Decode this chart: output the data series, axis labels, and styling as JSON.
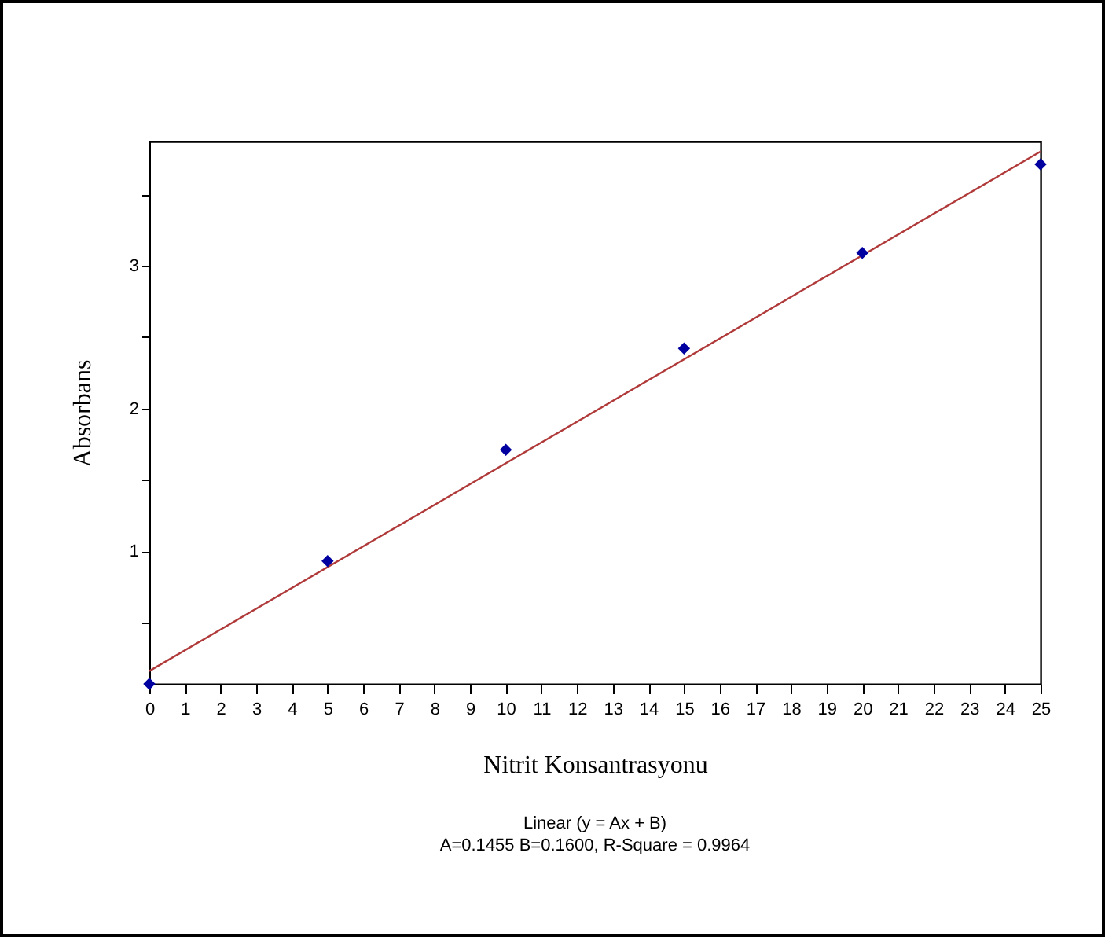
{
  "chart_data": {
    "type": "scatter",
    "xlabel": "Nitrit Konsantrasyonu",
    "ylabel": "Absorbans",
    "annotations": [
      "Linear (y = Ax + B)",
      "A=0.1455  B=0.1600, R-Square = 0.9964"
    ],
    "x": [
      0,
      5,
      10,
      15,
      20,
      25
    ],
    "series": [
      {
        "color": "#0000a0",
        "marker": "diamond",
        "values": [
          0.07,
          0.93,
          1.71,
          2.42,
          3.09,
          3.71
        ]
      },
      {
        "type": "line",
        "color": "#b03a3a",
        "x": [
          0,
          25
        ],
        "values": [
          0.16,
          3.8
        ]
      }
    ],
    "xlim": [
      0,
      25
    ],
    "xticks": [
      0,
      1,
      2,
      3,
      4,
      5,
      6,
      7,
      8,
      9,
      10,
      11,
      12,
      13,
      14,
      15,
      16,
      17,
      18,
      19,
      20,
      21,
      22,
      23,
      24,
      25
    ],
    "ylim": [
      0.07,
      3.87
    ],
    "yticks": [
      {
        "value": 0.5,
        "label": null
      },
      1,
      {
        "value": 1.5,
        "label": null
      },
      2,
      {
        "value": 2.5,
        "label": null
      },
      3,
      {
        "value": 3.5,
        "label": null
      }
    ],
    "grid": false
  }
}
